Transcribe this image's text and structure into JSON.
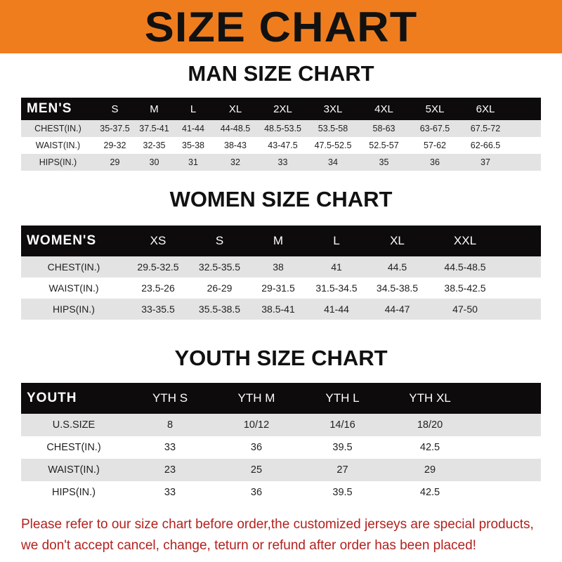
{
  "banner": {
    "title": "SIZE CHART",
    "color": "#ef7d1e"
  },
  "men": {
    "title": "MAN SIZE CHART",
    "header": [
      "MEN'S",
      "S",
      "M",
      "L",
      "XL",
      "2XL",
      "3XL",
      "4XL",
      "5XL",
      "6XL"
    ],
    "rows": [
      [
        "CHEST(IN.)",
        "35-37.5",
        "37.5-41",
        "41-44",
        "44-48.5",
        "48.5-53.5",
        "53.5-58",
        "58-63",
        "63-67.5",
        "67.5-72"
      ],
      [
        "WAIST(IN.)",
        "29-32",
        "32-35",
        "35-38",
        "38-43",
        "43-47.5",
        "47.5-52.5",
        "52.5-57",
        "57-62",
        "62-66.5"
      ],
      [
        "HIPS(IN.)",
        "29",
        "30",
        "31",
        "32",
        "33",
        "34",
        "35",
        "36",
        "37"
      ]
    ]
  },
  "women": {
    "title": "WOMEN SIZE CHART",
    "header": [
      "WOMEN'S",
      "XS",
      "S",
      "M",
      "L",
      "XL",
      "XXL"
    ],
    "rows": [
      [
        "CHEST(IN.)",
        "29.5-32.5",
        "32.5-35.5",
        "38",
        "41",
        "44.5",
        "44.5-48.5"
      ],
      [
        "WAIST(IN.)",
        "23.5-26",
        "26-29",
        "29-31.5",
        "31.5-34.5",
        "34.5-38.5",
        "38.5-42.5"
      ],
      [
        "HIPS(IN.)",
        "33-35.5",
        "35.5-38.5",
        "38.5-41",
        "41-44",
        "44-47",
        "47-50"
      ]
    ]
  },
  "youth": {
    "title": "YOUTH SIZE CHART",
    "header": [
      "YOUTH",
      "YTH S",
      "YTH M",
      "YTH L",
      "YTH XL"
    ],
    "rows": [
      [
        "U.S.SIZE",
        "8",
        "10/12",
        "14/16",
        "18/20"
      ],
      [
        "CHEST(IN.)",
        "33",
        "36",
        "39.5",
        "42.5"
      ],
      [
        "WAIST(IN.)",
        "23",
        "25",
        "27",
        "29"
      ],
      [
        "HIPS(IN.)",
        "33",
        "36",
        "39.5",
        "42.5"
      ]
    ]
  },
  "note": {
    "line1": "Please refer to our size chart before order,the customized jerseys are special products,",
    "line2": "we don't accept cancel, change, teturn or refund after order has been placed!"
  }
}
